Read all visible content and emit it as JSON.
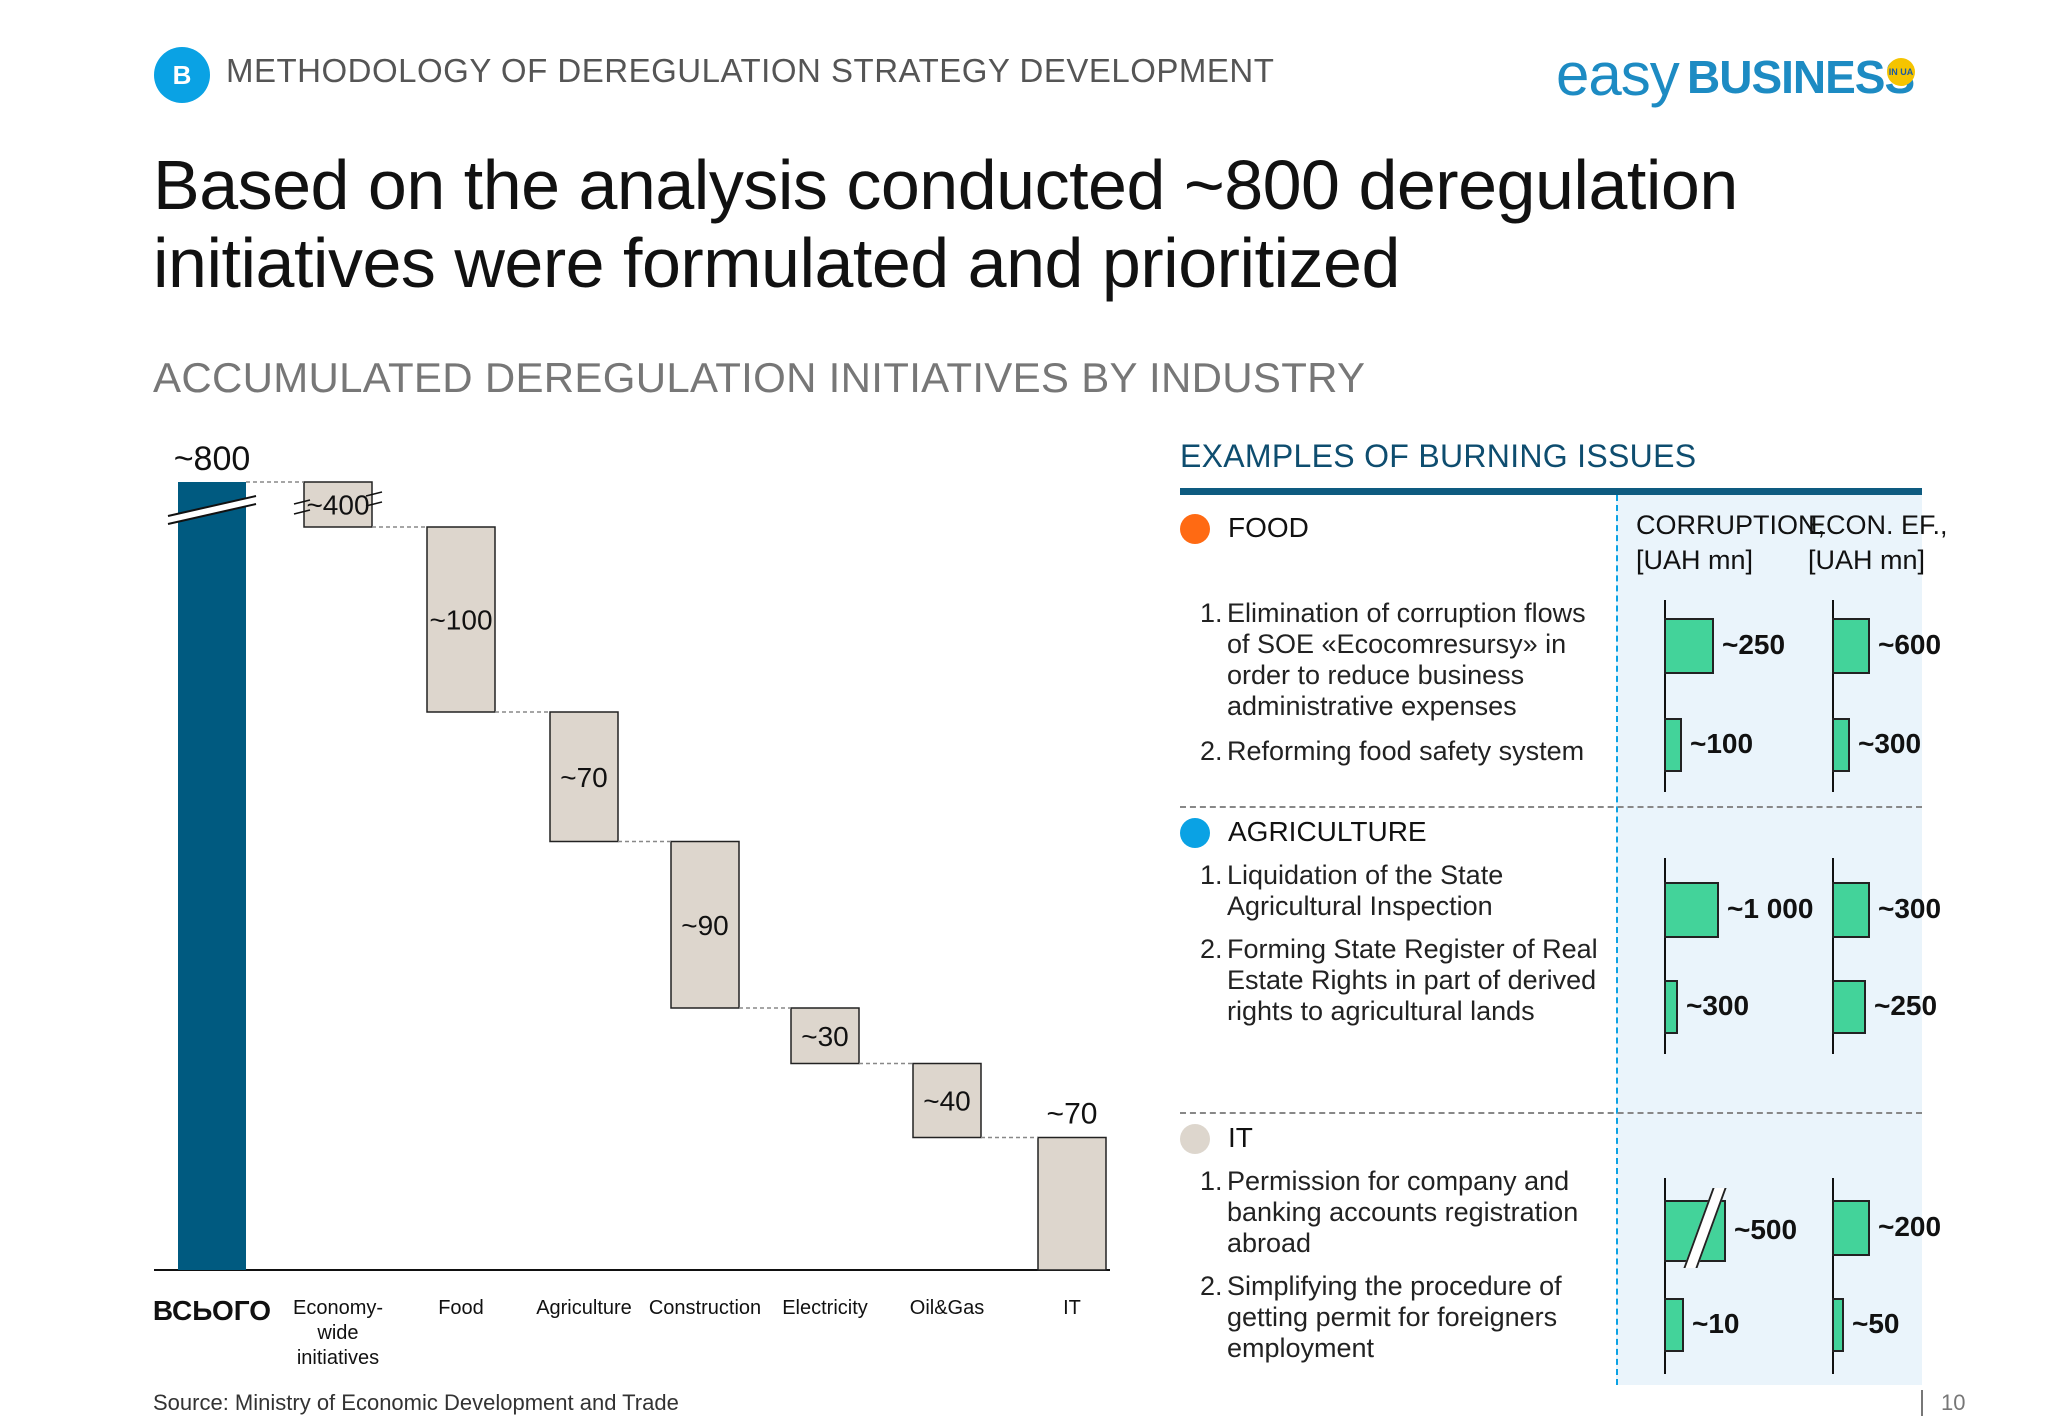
{
  "header": {
    "badge": "B",
    "section": "METHODOLOGY OF DEREGULATION STRATEGY DEVELOPMENT",
    "logo_easy": "easy",
    "logo_business": "BUSINESS",
    "logo_badge": "IN UA"
  },
  "title": "Based on the analysis conducted ~800 deregulation initiatives were formulated and prioritized",
  "subtitle": "ACCUMULATED DEREGULATION INITIATIVES BY INDUSTRY",
  "colors": {
    "total_bar": "#005a80",
    "step_bar": "#ddd6cd",
    "mini_bar": "#43d39a",
    "food": "#ff6a13",
    "agriculture": "#0aa2e4",
    "it": "#ddd6cd"
  },
  "chart_data": {
    "type": "bar",
    "subtype": "waterfall",
    "categories": [
      "ВСЬОГО",
      "Economy-wide initiatives",
      "Food",
      "Agriculture",
      "Construction",
      "Electricity",
      "Oil&Gas",
      "IT"
    ],
    "values": [
      800,
      400,
      100,
      70,
      90,
      30,
      40,
      70
    ],
    "labels": [
      "~800",
      "~400",
      "~100",
      "~70",
      "~90",
      "~30",
      "~40",
      "~70"
    ],
    "broken_axis": true
  },
  "panel": {
    "title": "EXAMPLES OF BURNING ISSUES",
    "col1_line1": "CORRUPTION,",
    "col1_line2": "[UAH mn]",
    "col2_line1": "ECON. EF.,",
    "col2_line2": "[UAH mn]",
    "sections": [
      {
        "name": "FOOD",
        "issues": [
          {
            "num": "1.",
            "text": "Elimination of corruption flows of SOE «Ecocomresursy» in order to reduce  business administrative expenses",
            "corruption": "~250",
            "econ": "~600"
          },
          {
            "num": "2.",
            "text": "Reforming food safety system",
            "corruption": "~100",
            "econ": "~300"
          }
        ]
      },
      {
        "name": "AGRICULTURE",
        "issues": [
          {
            "num": "1.",
            "text": "Liquidation of the State Agricultural Inspection",
            "corruption": "~1 000",
            "econ": "~300"
          },
          {
            "num": "2.",
            "text": "Forming State Register of Real Estate Rights in part of derived rights to agricultural lands",
            "corruption": "~300",
            "econ": "~250"
          }
        ]
      },
      {
        "name": "IT",
        "issues": [
          {
            "num": "1.",
            "text": "Permission for company and banking accounts registration abroad",
            "corruption": "~500",
            "econ": "~200"
          },
          {
            "num": "2.",
            "text": "Simplifying the procedure of getting permit for foreigners employment",
            "corruption": "~10",
            "econ": "~50"
          }
        ]
      }
    ]
  },
  "source": "Source: Ministry of Economic Development and Trade",
  "page_number": "10"
}
